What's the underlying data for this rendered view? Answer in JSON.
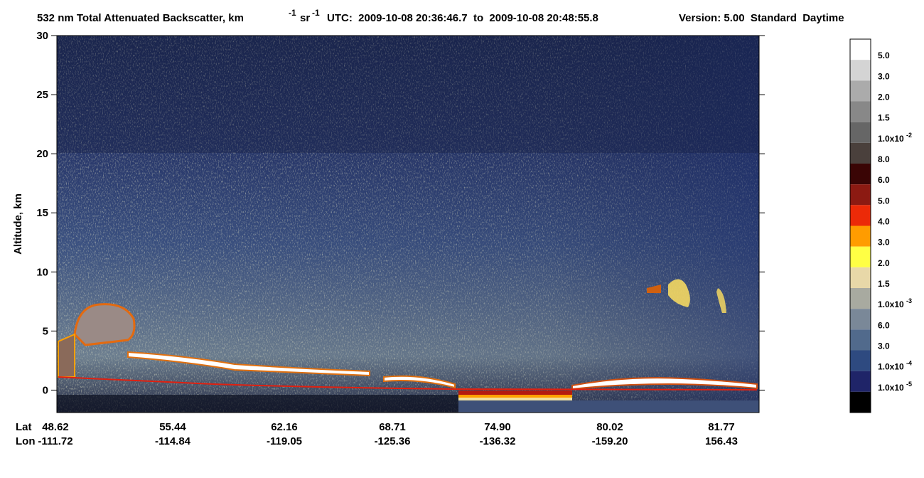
{
  "chart_data": {
    "type": "curtain",
    "title": "532 nm Total Attenuated Backscatter, km",
    "title_exp1": "-1",
    "title_unit2": "sr",
    "title_exp2": "-1",
    "utc": "UTC:  2009-10-08 20:36:46.7  to  2009-10-08 20:48:55.8",
    "version": "Version: 5.00  Standard  Daytime",
    "ylabel": "Altitude, km",
    "ylim": [
      -1.9,
      30
    ],
    "yticks": [
      0,
      5,
      10,
      15,
      20,
      25,
      30
    ],
    "x_row_labels": [
      "Lat",
      "Lon"
    ],
    "lat": [
      "48.62",
      "55.44",
      "62.16",
      "68.71",
      "74.90",
      "80.02",
      "81.77"
    ],
    "lon": [
      "-111.72",
      "-114.84",
      "-119.05",
      "-125.36",
      "-136.32",
      "-159.20",
      "156.43"
    ],
    "colorbar": {
      "colors": [
        "#ffffff",
        "#d4d4d4",
        "#ababab",
        "#888888",
        "#666666",
        "#4a403c",
        "#3a0505",
        "#8c1a12",
        "#ec2a08",
        "#ff9c00",
        "#ffff44",
        "#e8d8a8",
        "#a8aaa0",
        "#7a8898",
        "#516a8c",
        "#2e4a80",
        "#1f2468",
        "#000000"
      ],
      "labels": [
        {
          "text": "5.0"
        },
        {
          "text": "3.0"
        },
        {
          "text": "2.0"
        },
        {
          "text": "1.5"
        },
        {
          "text": "1.0x10",
          "exp": "-2"
        },
        {
          "text": "8.0"
        },
        {
          "text": "6.0"
        },
        {
          "text": "5.0"
        },
        {
          "text": "4.0"
        },
        {
          "text": "3.0"
        },
        {
          "text": "2.0"
        },
        {
          "text": "1.5"
        },
        {
          "text": "1.0x10",
          "exp": "-3"
        },
        {
          "text": "6.0"
        },
        {
          "text": "3.0"
        },
        {
          "text": "1.0x10",
          "exp": "-4"
        },
        {
          "text": "1.0x10",
          "exp": "-5"
        }
      ]
    }
  }
}
